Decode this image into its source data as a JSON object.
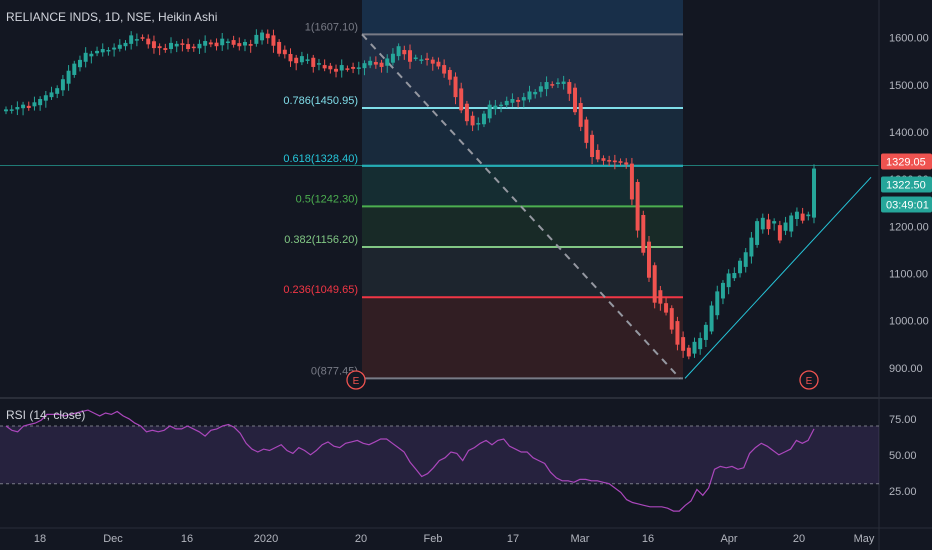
{
  "symbol_title": "RELIANCE INDS, 1D, NSE, Heikin Ashi",
  "colors": {
    "background": "#131722",
    "up": "#26a69a",
    "down": "#ef5350",
    "axis_text": "#b2b5be",
    "grid_divider": "#2a2e39",
    "rsi_line": "#ab47bc",
    "rsi_band": "#7e57c2",
    "trendline": "#26c6da"
  },
  "chart_data": [
    {
      "type": "candlestick",
      "title": "RELIANCE INDS, 1D, NSE, Heikin Ashi",
      "y_axis": {
        "ticks": [
          "900.00",
          "1000.00",
          "1100.00",
          "1200.00",
          "1300.00",
          "1400.00",
          "1500.00",
          "1600.00"
        ],
        "ylim": [
          838,
          1680
        ]
      },
      "x_axis": {
        "ticks": [
          "18",
          "Dec",
          "16",
          "2020",
          "20",
          "Feb",
          "17",
          "Mar",
          "16",
          "Apr",
          "20",
          "May"
        ]
      },
      "price_labels": {
        "last_price": "1329.05",
        "close": "1322.50",
        "countdown": "03:49:01"
      },
      "fibonacci": {
        "levels": [
          {
            "label": "1(1607.10)",
            "value": 1607.1,
            "color": "#787b86"
          },
          {
            "label": "0.786(1450.95)",
            "value": 1450.95,
            "color": "#80deea"
          },
          {
            "label": "0.618(1328.40)",
            "value": 1328.4,
            "color": "#26c6da"
          },
          {
            "label": "0.5(1242.30)",
            "value": 1242.3,
            "color": "#4caf50"
          },
          {
            "label": "0.382(1156.20)",
            "value": 1156.2,
            "color": "#81c784"
          },
          {
            "label": "0.236(1049.65)",
            "value": 1049.65,
            "color": "#f23645"
          },
          {
            "label": "0(877.45)",
            "value": 877.45,
            "color": "#787b86"
          }
        ]
      },
      "event_markers": [
        "E",
        "E"
      ],
      "heikin_ashi_close": [
        1448,
        1448,
        1453,
        1458,
        1451,
        1463,
        1470,
        1478,
        1484,
        1493,
        1512,
        1530,
        1545,
        1553,
        1568,
        1566,
        1572,
        1576,
        1574,
        1579,
        1585,
        1589,
        1605,
        1597,
        1599,
        1586,
        1578,
        1578,
        1574,
        1589,
        1587,
        1586,
        1576,
        1579,
        1587,
        1593,
        1586,
        1582,
        1598,
        1592,
        1585,
        1582,
        1591,
        1583,
        1606,
        1611,
        1599,
        1583,
        1566,
        1565,
        1550,
        1546,
        1561,
        1554,
        1538,
        1546,
        1535,
        1533,
        1528,
        1542,
        1534,
        1534,
        1537,
        1546,
        1551,
        1543,
        1538,
        1556,
        1566,
        1582,
        1565,
        1549,
        1558,
        1554,
        1553,
        1545,
        1539,
        1524,
        1511,
        1474,
        1446,
        1423,
        1414,
        1419,
        1439,
        1458,
        1456,
        1458,
        1466,
        1470,
        1464,
        1474,
        1486,
        1485,
        1497,
        1506,
        1499,
        1505,
        1507,
        1481,
        1442,
        1411,
        1377,
        1347,
        1342,
        1339,
        1340,
        1336,
        1335,
        1331,
        1257,
        1191,
        1144,
        1091,
        1038,
        1036,
        1017,
        981,
        949,
        936,
        924,
        955,
        963,
        991,
        1032,
        1062,
        1080,
        1100,
        1101,
        1127,
        1145,
        1176,
        1211,
        1218,
        1194,
        1211,
        1170,
        1208,
        1223,
        1231,
        1212,
        1225,
        1322.5
      ]
    },
    {
      "type": "line",
      "title": "RSI (14, close)",
      "y_axis": {
        "ticks": [
          "25.00",
          "50.00",
          "75.00"
        ],
        "ylim": [
          0,
          88
        ]
      },
      "bands": {
        "upper": 70,
        "lower": 30
      },
      "values": [
        70,
        67,
        66,
        70,
        71,
        72,
        74,
        78,
        78,
        78,
        77,
        78,
        79,
        80,
        81,
        79,
        77,
        79,
        78,
        80,
        77,
        75,
        72,
        70,
        66,
        67,
        66,
        67,
        70,
        68,
        68,
        70,
        68,
        66,
        63,
        67,
        68,
        70,
        71,
        69,
        65,
        58,
        54,
        52,
        54,
        53,
        55,
        57,
        53,
        51,
        55,
        53,
        50,
        53,
        57,
        59,
        56,
        55,
        58,
        59,
        60,
        58,
        57,
        59,
        61,
        61,
        58,
        55,
        52,
        45,
        40,
        35,
        37,
        41,
        46,
        48,
        52,
        51,
        46,
        53,
        55,
        58,
        60,
        57,
        60,
        61,
        56,
        54,
        52,
        52,
        48,
        46,
        44,
        38,
        34,
        32,
        32,
        31,
        33,
        33,
        32,
        32,
        31,
        30,
        27,
        24,
        19,
        17,
        16,
        15,
        14,
        14,
        14,
        13,
        11,
        11,
        15,
        18,
        26,
        22,
        27,
        40,
        42,
        41,
        42,
        40,
        41,
        51,
        55,
        58,
        56,
        53,
        50,
        52,
        54,
        60,
        58,
        60,
        68
      ]
    }
  ]
}
